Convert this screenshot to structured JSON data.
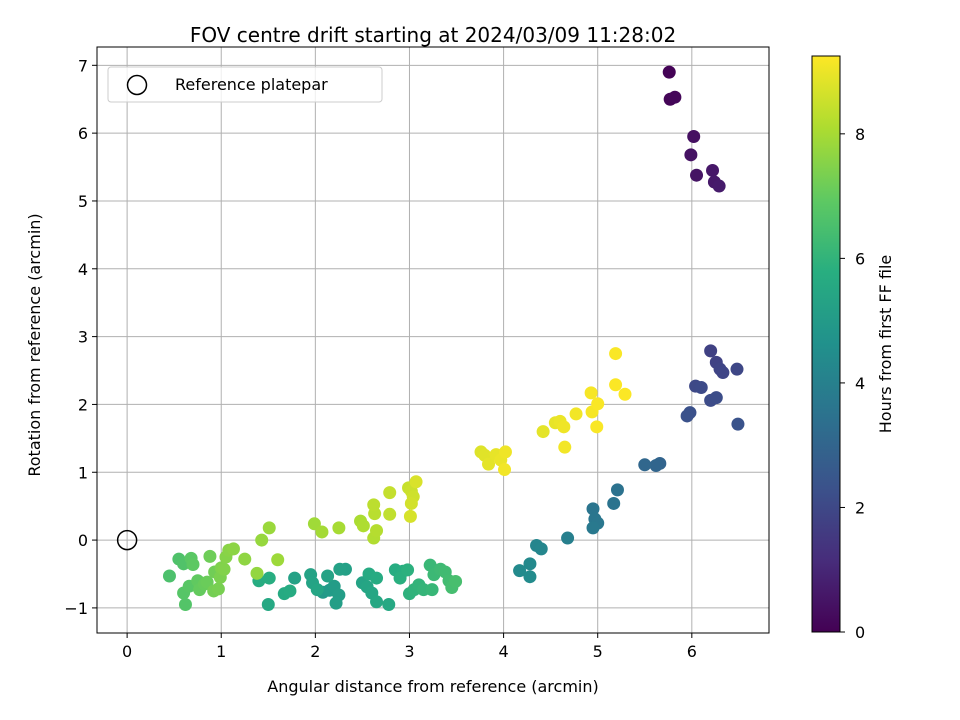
{
  "chart_data": {
    "type": "scatter",
    "title": "FOV centre drift starting at 2024/03/09 11:28:02",
    "xlabel": "Angular distance from reference (arcmin)",
    "ylabel": "Rotation from reference (arcmin)",
    "colorbar_label": "Hours from first FF file",
    "colormap": "viridis",
    "xlim": [
      -0.32,
      6.82
    ],
    "ylim": [
      -1.37,
      7.27
    ],
    "clim": [
      0,
      9.25
    ],
    "xticks": [
      0,
      1,
      2,
      3,
      4,
      5,
      6
    ],
    "yticks": [
      -1,
      0,
      1,
      2,
      3,
      4,
      5,
      6,
      7
    ],
    "cticks": [
      0,
      2,
      4,
      6,
      8
    ],
    "grid": true,
    "legend": {
      "label": "Reference platepar",
      "placement": "top-left",
      "marker": "open-circle"
    },
    "reference_point": {
      "x": 0,
      "y": 0
    },
    "points": [
      {
        "x": 5.76,
        "y": 6.9,
        "h": 0.05
      },
      {
        "x": 5.77,
        "y": 6.5,
        "h": 0.1
      },
      {
        "x": 5.82,
        "y": 6.53,
        "h": 0.15
      },
      {
        "x": 6.02,
        "y": 5.95,
        "h": 0.4
      },
      {
        "x": 5.99,
        "y": 5.68,
        "h": 0.45
      },
      {
        "x": 6.05,
        "y": 5.38,
        "h": 0.5
      },
      {
        "x": 6.22,
        "y": 5.45,
        "h": 0.6
      },
      {
        "x": 6.24,
        "y": 5.28,
        "h": 0.65
      },
      {
        "x": 6.29,
        "y": 5.22,
        "h": 0.7
      },
      {
        "x": 6.2,
        "y": 2.79,
        "h": 1.8
      },
      {
        "x": 6.26,
        "y": 2.62,
        "h": 1.85
      },
      {
        "x": 6.3,
        "y": 2.52,
        "h": 1.9
      },
      {
        "x": 6.33,
        "y": 2.47,
        "h": 1.95
      },
      {
        "x": 6.48,
        "y": 2.52,
        "h": 2.0
      },
      {
        "x": 6.04,
        "y": 2.27,
        "h": 2.05
      },
      {
        "x": 6.1,
        "y": 2.25,
        "h": 2.1
      },
      {
        "x": 6.2,
        "y": 2.06,
        "h": 2.15
      },
      {
        "x": 6.26,
        "y": 2.1,
        "h": 2.2
      },
      {
        "x": 5.98,
        "y": 1.88,
        "h": 2.3
      },
      {
        "x": 5.95,
        "y": 1.83,
        "h": 2.35
      },
      {
        "x": 6.49,
        "y": 1.71,
        "h": 2.4
      },
      {
        "x": 5.66,
        "y": 1.13,
        "h": 3.0
      },
      {
        "x": 5.62,
        "y": 1.1,
        "h": 3.05
      },
      {
        "x": 5.5,
        "y": 1.11,
        "h": 3.1
      },
      {
        "x": 5.21,
        "y": 0.74,
        "h": 3.5
      },
      {
        "x": 5.17,
        "y": 0.54,
        "h": 3.55
      },
      {
        "x": 4.95,
        "y": 0.46,
        "h": 3.6
      },
      {
        "x": 4.97,
        "y": 0.31,
        "h": 3.65
      },
      {
        "x": 5.0,
        "y": 0.25,
        "h": 3.7
      },
      {
        "x": 4.95,
        "y": 0.18,
        "h": 3.75
      },
      {
        "x": 4.68,
        "y": 0.03,
        "h": 4.0
      },
      {
        "x": 4.35,
        "y": -0.08,
        "h": 4.2
      },
      {
        "x": 4.4,
        "y": -0.13,
        "h": 4.25
      },
      {
        "x": 4.28,
        "y": -0.35,
        "h": 4.35
      },
      {
        "x": 4.17,
        "y": -0.45,
        "h": 4.4
      },
      {
        "x": 4.28,
        "y": -0.54,
        "h": 4.45
      },
      {
        "x": 2.08,
        "y": -0.77,
        "h": 5.0
      },
      {
        "x": 2.15,
        "y": -0.74,
        "h": 5.05
      },
      {
        "x": 2.2,
        "y": -0.68,
        "h": 5.1
      },
      {
        "x": 2.25,
        "y": -0.81,
        "h": 5.15
      },
      {
        "x": 2.22,
        "y": -0.93,
        "h": 5.2
      },
      {
        "x": 2.32,
        "y": -0.43,
        "h": 5.25
      },
      {
        "x": 2.26,
        "y": -0.43,
        "h": 5.3
      },
      {
        "x": 2.13,
        "y": -0.53,
        "h": 5.35
      },
      {
        "x": 2.5,
        "y": -0.63,
        "h": 5.4
      },
      {
        "x": 2.55,
        "y": -0.69,
        "h": 5.45
      },
      {
        "x": 2.6,
        "y": -0.78,
        "h": 5.5
      },
      {
        "x": 2.65,
        "y": -0.91,
        "h": 5.55
      },
      {
        "x": 2.78,
        "y": -0.95,
        "h": 5.6
      },
      {
        "x": 2.57,
        "y": -0.5,
        "h": 5.65
      },
      {
        "x": 2.65,
        "y": -0.56,
        "h": 5.7
      },
      {
        "x": 2.85,
        "y": -0.44,
        "h": 5.75
      },
      {
        "x": 2.93,
        "y": -0.46,
        "h": 5.8
      },
      {
        "x": 2.9,
        "y": -0.56,
        "h": 5.85
      },
      {
        "x": 2.98,
        "y": -0.44,
        "h": 5.9
      },
      {
        "x": 3.0,
        "y": -0.79,
        "h": 5.95
      },
      {
        "x": 3.05,
        "y": -0.73,
        "h": 6.0
      },
      {
        "x": 3.1,
        "y": -0.66,
        "h": 6.05
      },
      {
        "x": 3.15,
        "y": -0.73,
        "h": 6.1
      },
      {
        "x": 3.24,
        "y": -0.73,
        "h": 6.15
      },
      {
        "x": 3.22,
        "y": -0.37,
        "h": 6.2
      },
      {
        "x": 3.26,
        "y": -0.51,
        "h": 6.25
      },
      {
        "x": 3.33,
        "y": -0.43,
        "h": 6.3
      },
      {
        "x": 3.38,
        "y": -0.47,
        "h": 6.35
      },
      {
        "x": 3.42,
        "y": -0.6,
        "h": 6.4
      },
      {
        "x": 3.45,
        "y": -0.7,
        "h": 6.45
      },
      {
        "x": 3.49,
        "y": -0.61,
        "h": 6.5
      },
      {
        "x": 1.78,
        "y": -0.56,
        "h": 5.3
      },
      {
        "x": 1.95,
        "y": -0.51,
        "h": 5.35
      },
      {
        "x": 1.5,
        "y": -0.95,
        "h": 5.6
      },
      {
        "x": 1.67,
        "y": -0.79,
        "h": 5.65
      },
      {
        "x": 1.73,
        "y": -0.75,
        "h": 5.7
      },
      {
        "x": 1.4,
        "y": -0.6,
        "h": 5.75
      },
      {
        "x": 1.51,
        "y": -0.56,
        "h": 5.8
      },
      {
        "x": 1.97,
        "y": -0.63,
        "h": 5.4
      },
      {
        "x": 2.02,
        "y": -0.73,
        "h": 5.45
      },
      {
        "x": 0.45,
        "y": -0.53,
        "h": 6.6
      },
      {
        "x": 0.55,
        "y": -0.28,
        "h": 6.65
      },
      {
        "x": 0.6,
        "y": -0.35,
        "h": 6.7
      },
      {
        "x": 0.62,
        "y": -0.95,
        "h": 6.75
      },
      {
        "x": 0.6,
        "y": -0.78,
        "h": 6.8
      },
      {
        "x": 0.66,
        "y": -0.68,
        "h": 6.85
      },
      {
        "x": 0.68,
        "y": -0.27,
        "h": 6.9
      },
      {
        "x": 0.7,
        "y": -0.36,
        "h": 6.95
      },
      {
        "x": 0.75,
        "y": -0.6,
        "h": 7.0
      },
      {
        "x": 0.77,
        "y": -0.73,
        "h": 7.05
      },
      {
        "x": 0.82,
        "y": -0.65,
        "h": 7.1
      },
      {
        "x": 0.85,
        "y": -0.62,
        "h": 7.15
      },
      {
        "x": 0.88,
        "y": -0.24,
        "h": 7.2
      },
      {
        "x": 0.93,
        "y": -0.47,
        "h": 7.25
      },
      {
        "x": 0.92,
        "y": -0.75,
        "h": 7.3
      },
      {
        "x": 0.97,
        "y": -0.72,
        "h": 7.35
      },
      {
        "x": 0.99,
        "y": -0.55,
        "h": 7.4
      },
      {
        "x": 1.0,
        "y": -0.41,
        "h": 7.45
      },
      {
        "x": 1.03,
        "y": -0.43,
        "h": 7.5
      },
      {
        "x": 1.05,
        "y": -0.25,
        "h": 7.55
      },
      {
        "x": 1.08,
        "y": -0.15,
        "h": 7.6
      },
      {
        "x": 1.13,
        "y": -0.13,
        "h": 7.65
      },
      {
        "x": 1.25,
        "y": -0.28,
        "h": 7.7
      },
      {
        "x": 1.38,
        "y": -0.49,
        "h": 7.75
      },
      {
        "x": 1.43,
        "y": 0.0,
        "h": 7.8
      },
      {
        "x": 1.51,
        "y": 0.18,
        "h": 7.85
      },
      {
        "x": 1.6,
        "y": -0.29,
        "h": 7.9
      },
      {
        "x": 1.99,
        "y": 0.24,
        "h": 7.95
      },
      {
        "x": 2.07,
        "y": 0.12,
        "h": 8.0
      },
      {
        "x": 2.25,
        "y": 0.18,
        "h": 8.05
      },
      {
        "x": 2.48,
        "y": 0.28,
        "h": 8.1
      },
      {
        "x": 2.51,
        "y": 0.21,
        "h": 8.15
      },
      {
        "x": 2.62,
        "y": 0.03,
        "h": 8.2
      },
      {
        "x": 2.65,
        "y": 0.14,
        "h": 8.25
      },
      {
        "x": 2.63,
        "y": 0.39,
        "h": 8.3
      },
      {
        "x": 2.62,
        "y": 0.52,
        "h": 8.35
      },
      {
        "x": 2.79,
        "y": 0.38,
        "h": 8.4
      },
      {
        "x": 2.79,
        "y": 0.7,
        "h": 8.45
      },
      {
        "x": 2.99,
        "y": 0.77,
        "h": 8.5
      },
      {
        "x": 3.02,
        "y": 0.72,
        "h": 8.55
      },
      {
        "x": 3.04,
        "y": 0.64,
        "h": 8.6
      },
      {
        "x": 3.02,
        "y": 0.54,
        "h": 8.65
      },
      {
        "x": 3.01,
        "y": 0.35,
        "h": 8.7
      },
      {
        "x": 3.07,
        "y": 0.86,
        "h": 8.75
      },
      {
        "x": 3.76,
        "y": 1.3,
        "h": 8.8
      },
      {
        "x": 3.8,
        "y": 1.25,
        "h": 8.85
      },
      {
        "x": 3.84,
        "y": 1.12,
        "h": 8.9
      },
      {
        "x": 3.92,
        "y": 1.26,
        "h": 8.95
      },
      {
        "x": 3.97,
        "y": 1.18,
        "h": 9.0
      },
      {
        "x": 4.02,
        "y": 1.3,
        "h": 9.05
      },
      {
        "x": 4.01,
        "y": 1.04,
        "h": 9.1
      },
      {
        "x": 4.42,
        "y": 1.6,
        "h": 8.9
      },
      {
        "x": 4.55,
        "y": 1.73,
        "h": 8.95
      },
      {
        "x": 4.6,
        "y": 1.75,
        "h": 9.0
      },
      {
        "x": 4.64,
        "y": 1.67,
        "h": 9.05
      },
      {
        "x": 4.65,
        "y": 1.37,
        "h": 9.1
      },
      {
        "x": 4.77,
        "y": 1.86,
        "h": 9.1
      },
      {
        "x": 4.94,
        "y": 1.89,
        "h": 9.15
      },
      {
        "x": 4.93,
        "y": 2.17,
        "h": 9.15
      },
      {
        "x": 5.0,
        "y": 2.01,
        "h": 9.2
      },
      {
        "x": 4.99,
        "y": 1.67,
        "h": 9.2
      },
      {
        "x": 5.19,
        "y": 2.75,
        "h": 9.2
      },
      {
        "x": 5.19,
        "y": 2.29,
        "h": 9.22
      },
      {
        "x": 5.29,
        "y": 2.15,
        "h": 9.22
      }
    ]
  }
}
